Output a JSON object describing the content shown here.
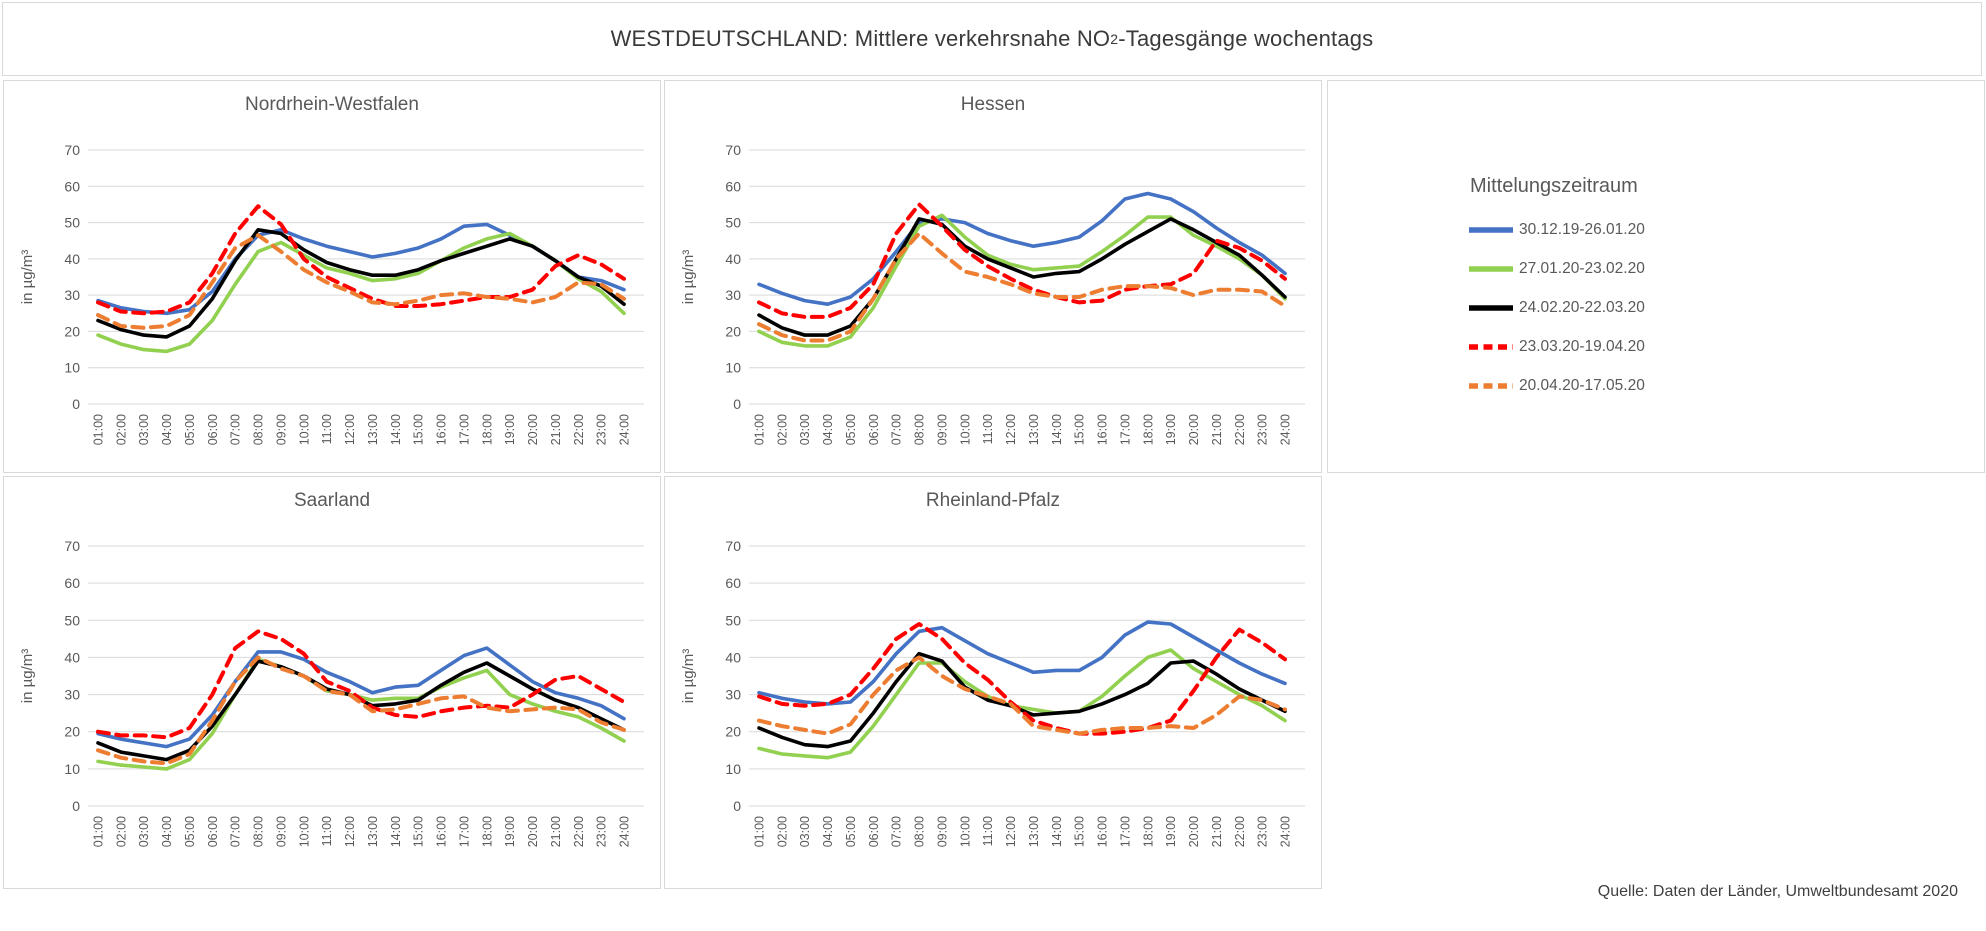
{
  "title": {
    "prefix": "WESTDEUTSCHLAND: Mittlere verkehrsnahe NO",
    "sub": "2",
    "suffix": "-Tagesgänge wochentags"
  },
  "source": "Quelle: Daten der Länder, Umweltbundesamt 2020",
  "legend": {
    "title": "Mittelungszeitraum",
    "items": [
      {
        "label": "30.12.19-26.01.20",
        "color": "#4472C4",
        "dash": "solid"
      },
      {
        "label": "27.01.20-23.02.20",
        "color": "#92D050",
        "dash": "solid"
      },
      {
        "label": "24.02.20-22.03.20",
        "color": "#000000",
        "dash": "solid"
      },
      {
        "label": "23.03.20-19.04.20",
        "color": "#FF0000",
        "dash": "dashed"
      },
      {
        "label": "20.04.20-17.05.20",
        "color": "#ED7D31",
        "dash": "dashed"
      }
    ]
  },
  "colors": {
    "gridline": "#d9d9d9",
    "axis_text": "#595959",
    "panel_border": "#d9d9d9"
  },
  "chart_data": [
    {
      "type": "line",
      "title": "Nordrhein-Westfalen",
      "ylabel": "in µg/m³",
      "ylim": [
        0,
        70
      ],
      "ytick_step": 10,
      "grid": true,
      "categories": [
        "01:00",
        "02:00",
        "03:00",
        "04:00",
        "05:00",
        "06:00",
        "07:00",
        "08:00",
        "09:00",
        "10:00",
        "11:00",
        "12:00",
        "13:00",
        "14:00",
        "15:00",
        "16:00",
        "17:00",
        "18:00",
        "19:00",
        "20:00",
        "21:00",
        "22:00",
        "23:00",
        "24:00"
      ],
      "series": [
        {
          "name": "30.12.19-26.01.20",
          "color": "#4472C4",
          "dash": "solid",
          "values": [
            28.5,
            26.5,
            25.5,
            25,
            26,
            31,
            40,
            46.5,
            48,
            45.5,
            43.5,
            42,
            40.5,
            41.5,
            43,
            45.5,
            49,
            49.5,
            46.5,
            43.5,
            39.5,
            35,
            34,
            31.5
          ]
        },
        {
          "name": "27.01.20-23.02.20",
          "color": "#92D050",
          "dash": "solid",
          "values": [
            19,
            16.5,
            15,
            14.5,
            16.5,
            23,
            33,
            42,
            44.5,
            41,
            37.5,
            36,
            34,
            34.5,
            36,
            39.5,
            43,
            45.5,
            47,
            43.5,
            39.5,
            34.5,
            31,
            25
          ]
        },
        {
          "name": "24.02.20-22.03.20",
          "color": "#000000",
          "dash": "solid",
          "values": [
            23,
            20.5,
            19,
            18.5,
            21.5,
            29,
            39.5,
            48,
            47,
            42.5,
            39,
            37,
            35.5,
            35.5,
            37,
            39.5,
            41.5,
            43.5,
            45.5,
            43.5,
            39.5,
            35,
            32.5,
            27.5
          ]
        },
        {
          "name": "23.03.20-19.04.20",
          "color": "#FF0000",
          "dash": "dashed",
          "values": [
            28,
            25.5,
            25,
            25.5,
            28,
            36,
            47,
            54.5,
            49.5,
            40,
            35,
            32,
            29,
            27,
            27,
            27.5,
            28.5,
            29.5,
            29.5,
            31.5,
            38,
            41,
            38.5,
            34.5
          ]
        },
        {
          "name": "20.04.20-17.05.20",
          "color": "#ED7D31",
          "dash": "dashed",
          "values": [
            24.5,
            21.5,
            21,
            21.5,
            24.5,
            33.5,
            43,
            46.5,
            42,
            37,
            33.5,
            31,
            28,
            27.5,
            28.5,
            30,
            30.5,
            29.5,
            29,
            28,
            29.5,
            33.5,
            33,
            29
          ]
        }
      ]
    },
    {
      "type": "line",
      "title": "Hessen",
      "ylabel": "in µg/m³",
      "ylim": [
        0,
        70
      ],
      "ytick_step": 10,
      "grid": true,
      "categories": [
        "01:00",
        "02:00",
        "03:00",
        "04:00",
        "05:00",
        "06:00",
        "07:00",
        "08:00",
        "09:00",
        "10:00",
        "11:00",
        "12:00",
        "13:00",
        "14:00",
        "15:00",
        "16:00",
        "17:00",
        "18:00",
        "19:00",
        "20:00",
        "21:00",
        "22:00",
        "23:00",
        "24:00"
      ],
      "series": [
        {
          "name": "30.12.19-26.01.20",
          "color": "#4472C4",
          "dash": "solid",
          "values": [
            33,
            30.5,
            28.5,
            27.5,
            29.5,
            34.5,
            42,
            50,
            51,
            50,
            47,
            45,
            43.5,
            44.5,
            46,
            50.5,
            56.5,
            58,
            56.5,
            53,
            48.5,
            44.5,
            41,
            36
          ]
        },
        {
          "name": "27.01.20-23.02.20",
          "color": "#92D050",
          "dash": "solid",
          "values": [
            20,
            17,
            16,
            16,
            18.5,
            26.5,
            38,
            49,
            52,
            46,
            41,
            38.5,
            37,
            37.5,
            38,
            42,
            46.5,
            51.5,
            51.5,
            46.5,
            43.5,
            40,
            35.5,
            29
          ]
        },
        {
          "name": "24.02.20-22.03.20",
          "color": "#000000",
          "dash": "solid",
          "values": [
            24.5,
            21,
            19,
            19,
            21.5,
            29,
            40,
            51,
            49.5,
            43.5,
            40,
            37.5,
            35,
            36,
            36.5,
            40,
            44,
            47.5,
            51,
            48,
            44.5,
            41,
            35.5,
            29.5
          ]
        },
        {
          "name": "23.03.20-19.04.20",
          "color": "#FF0000",
          "dash": "dashed",
          "values": [
            28,
            25,
            24,
            24,
            26.5,
            33,
            47,
            55,
            49,
            42.5,
            38,
            34.5,
            31.5,
            29.5,
            28,
            28.5,
            31.5,
            32.5,
            33,
            36,
            45,
            43,
            39.5,
            34.5
          ]
        },
        {
          "name": "20.04.20-17.05.20",
          "color": "#ED7D31",
          "dash": "dashed",
          "values": [
            22,
            19,
            17.5,
            17.5,
            20,
            29,
            40,
            47,
            41.5,
            36.5,
            35,
            33,
            30.5,
            29.5,
            29.5,
            31.5,
            32.5,
            32.5,
            32,
            30,
            31.5,
            31.5,
            31,
            27
          ]
        }
      ]
    },
    {
      "type": "line",
      "title": "Saarland",
      "ylabel": "in µg/m³",
      "ylim": [
        0,
        70
      ],
      "ytick_step": 10,
      "grid": true,
      "categories": [
        "01:00",
        "02:00",
        "03:00",
        "04:00",
        "05:00",
        "06:00",
        "07:00",
        "08:00",
        "09:00",
        "10:00",
        "11:00",
        "12:00",
        "13:00",
        "14:00",
        "15:00",
        "16:00",
        "17:00",
        "18:00",
        "19:00",
        "20:00",
        "21:00",
        "22:00",
        "23:00",
        "24:00"
      ],
      "series": [
        {
          "name": "30.12.19-26.01.20",
          "color": "#4472C4",
          "dash": "solid",
          "values": [
            19.5,
            18,
            17,
            16,
            18,
            24.5,
            33.5,
            41.5,
            41.5,
            39.5,
            36,
            33.5,
            30.5,
            32,
            32.5,
            36.5,
            40.5,
            42.5,
            38,
            33.5,
            30.5,
            29,
            27,
            23.5
          ]
        },
        {
          "name": "27.01.20-23.02.20",
          "color": "#92D050",
          "dash": "solid",
          "values": [
            12,
            11,
            10.5,
            10,
            12.5,
            19.5,
            30,
            39.5,
            37.5,
            35,
            31,
            30,
            28.5,
            29,
            29,
            32,
            34.5,
            36.5,
            30,
            27.5,
            25.5,
            24,
            21,
            17.5
          ]
        },
        {
          "name": "24.02.20-22.03.20",
          "color": "#000000",
          "dash": "solid",
          "values": [
            17,
            14.5,
            13.5,
            12.5,
            15,
            21.5,
            30,
            39,
            37.5,
            35,
            31.5,
            30,
            27,
            27.5,
            28.5,
            32.5,
            36,
            38.5,
            35,
            31.5,
            28.5,
            26.5,
            23.5,
            20.5
          ]
        },
        {
          "name": "23.03.20-19.04.20",
          "color": "#FF0000",
          "dash": "dashed",
          "values": [
            20,
            19,
            19,
            18.5,
            21,
            30,
            42.5,
            47,
            45,
            41,
            33.5,
            31,
            26.5,
            24.5,
            24,
            25.5,
            26.5,
            27,
            26.5,
            30,
            34,
            35,
            31.5,
            28
          ]
        },
        {
          "name": "20.04.20-17.05.20",
          "color": "#ED7D31",
          "dash": "dashed",
          "values": [
            15,
            13,
            12,
            11.5,
            14,
            23,
            33.5,
            40,
            37,
            35,
            31,
            30,
            25.5,
            26,
            27.5,
            29,
            29.5,
            26.5,
            25.5,
            26,
            26.5,
            26,
            22.5,
            20.5
          ]
        }
      ]
    },
    {
      "type": "line",
      "title": "Rheinland-Pfalz",
      "ylabel": "in µg/m³",
      "ylim": [
        0,
        70
      ],
      "ytick_step": 10,
      "grid": true,
      "categories": [
        "01:00",
        "02:00",
        "03:00",
        "04:00",
        "05:00",
        "06:00",
        "07:00",
        "08:00",
        "09:00",
        "10:00",
        "11:00",
        "12:00",
        "13:00",
        "14:00",
        "15:00",
        "16:00",
        "17:00",
        "18:00",
        "19:00",
        "20:00",
        "21:00",
        "22:00",
        "23:00",
        "24:00"
      ],
      "series": [
        {
          "name": "30.12.19-26.01.20",
          "color": "#4472C4",
          "dash": "solid",
          "values": [
            30.5,
            29,
            28,
            27.5,
            28,
            33.5,
            41,
            47,
            48,
            44.5,
            41,
            38.5,
            36,
            36.5,
            36.5,
            40,
            46,
            49.5,
            49,
            45.5,
            42,
            38.5,
            35.5,
            33
          ]
        },
        {
          "name": "27.01.20-23.02.20",
          "color": "#92D050",
          "dash": "solid",
          "values": [
            15.5,
            14,
            13.5,
            13,
            14.5,
            21.5,
            30,
            38.5,
            38.5,
            33.5,
            29.5,
            27,
            26,
            25,
            25.5,
            29.5,
            35,
            40,
            42,
            37,
            33.5,
            30,
            27,
            23
          ]
        },
        {
          "name": "24.02.20-22.03.20",
          "color": "#000000",
          "dash": "solid",
          "values": [
            21,
            18.5,
            16.5,
            16,
            17.5,
            25,
            33.5,
            41,
            39,
            32,
            28.5,
            27,
            24.5,
            25,
            25.5,
            27.5,
            30,
            33,
            38.5,
            39,
            35.5,
            31.5,
            28.5,
            25.5
          ]
        },
        {
          "name": "23.03.20-19.04.20",
          "color": "#FF0000",
          "dash": "dashed",
          "values": [
            29.5,
            27.5,
            27,
            27.5,
            30,
            37,
            45,
            49,
            45,
            38.5,
            34,
            28,
            23,
            21,
            19.5,
            19.5,
            20,
            21,
            23,
            31,
            40,
            47.5,
            44,
            39.5
          ]
        },
        {
          "name": "20.04.20-17.05.20",
          "color": "#ED7D31",
          "dash": "dashed",
          "values": [
            23,
            21.5,
            20.5,
            19.5,
            22,
            30,
            36.5,
            40,
            35,
            31.5,
            29.5,
            27.5,
            21.5,
            20.5,
            19.5,
            20.5,
            21,
            21,
            21.5,
            21,
            24.5,
            29.5,
            28.5,
            26
          ]
        }
      ]
    }
  ]
}
